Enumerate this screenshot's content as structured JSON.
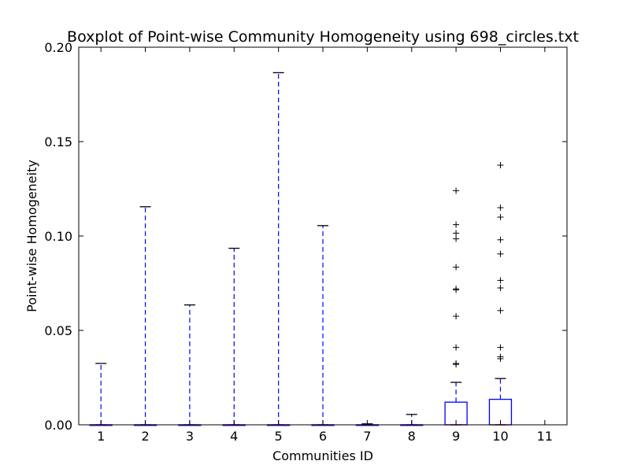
{
  "chart_data": {
    "type": "boxplot",
    "title": "Boxplot of Point-wise Community Homogeneity using 698_circles.txt",
    "xlabel": "Communities ID",
    "ylabel": "Point-wise Homogeneity",
    "ylim": [
      0,
      0.2
    ],
    "yticks": [
      "0.00",
      "0.05",
      "0.10",
      "0.15",
      "0.20"
    ],
    "xlim": [
      0.5,
      11.5
    ],
    "categories": [
      "1",
      "2",
      "3",
      "4",
      "5",
      "6",
      "7",
      "8",
      "9",
      "10",
      "11"
    ],
    "boxes": [
      {
        "id": "1",
        "q1": 0,
        "median": 0,
        "q3": 0,
        "whisker_low": 0,
        "whisker_high": 0.0325,
        "outliers": []
      },
      {
        "id": "2",
        "q1": 0,
        "median": 0,
        "q3": 0,
        "whisker_low": 0,
        "whisker_high": 0.1155,
        "outliers": []
      },
      {
        "id": "3",
        "q1": 0,
        "median": 0,
        "q3": 0,
        "whisker_low": 0,
        "whisker_high": 0.0635,
        "outliers": []
      },
      {
        "id": "4",
        "q1": 0,
        "median": 0,
        "q3": 0,
        "whisker_low": 0,
        "whisker_high": 0.0935,
        "outliers": []
      },
      {
        "id": "5",
        "q1": 0,
        "median": 0,
        "q3": 0,
        "whisker_low": 0,
        "whisker_high": 0.1865,
        "outliers": []
      },
      {
        "id": "6",
        "q1": 0,
        "median": 0,
        "q3": 0,
        "whisker_low": 0,
        "whisker_high": 0.1055,
        "outliers": []
      },
      {
        "id": "7",
        "q1": 0,
        "median": 0,
        "q3": 0,
        "whisker_low": 0,
        "whisker_high": 0.0005,
        "outliers": []
      },
      {
        "id": "8",
        "q1": 0,
        "median": 0,
        "q3": 0,
        "whisker_low": 0,
        "whisker_high": 0.0055,
        "outliers": []
      },
      {
        "id": "9",
        "q1": 0,
        "median": 0,
        "q3": 0.012,
        "whisker_low": 0,
        "whisker_high": 0.0225,
        "outliers": [
          0.124,
          0.106,
          0.1015,
          0.0985,
          0.0835,
          0.072,
          0.0715,
          0.0575,
          0.041,
          0.0325,
          0.032
        ]
      },
      {
        "id": "10",
        "q1": 0,
        "median": 0,
        "q3": 0.0135,
        "whisker_low": 0,
        "whisker_high": 0.0245,
        "outliers": [
          0.1375,
          0.115,
          0.11,
          0.098,
          0.0905,
          0.0765,
          0.0725,
          0.0605,
          0.041,
          0.036,
          0.035
        ]
      },
      {
        "id": "11",
        "q1": null,
        "median": null,
        "q3": null,
        "whisker_low": null,
        "whisker_high": null,
        "outliers": []
      }
    ],
    "colors": {
      "box": "#0000ff",
      "whisker": "#0000ff",
      "cap": "#000000",
      "median": "#ff0000",
      "outlier": "#000000"
    },
    "grid": false,
    "legend": "none"
  }
}
